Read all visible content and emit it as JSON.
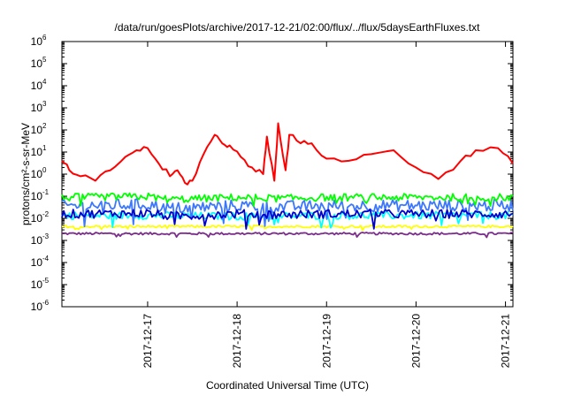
{
  "chart_data": {
    "type": "line",
    "title": "/data/run/goesPlots/archive/2017-12-21/02:00/flux/../flux/5daysEarthFluxes.txt",
    "xlabel": "Coordinated Universal Time (UTC)",
    "ylabel": "protons/cm²-s-sr-MeV",
    "yscale": "log",
    "ylim": [
      1e-06,
      1000000.0
    ],
    "xlim": [
      "2017-12-16T01:00",
      "2017-12-21T02:00"
    ],
    "grid": false,
    "legend": "none",
    "x_ticks": [
      "2017-12-17",
      "2017-12-18",
      "2017-12-19",
      "2017-12-20",
      "2017-12-21"
    ],
    "y_ticks": [
      {
        "base": "10",
        "exp": "-6",
        "value": 1e-06
      },
      {
        "base": "10",
        "exp": "-5",
        "value": 1e-05
      },
      {
        "base": "10",
        "exp": "-4",
        "value": 0.0001
      },
      {
        "base": "10",
        "exp": "-3",
        "value": 0.001
      },
      {
        "base": "10",
        "exp": "-2",
        "value": 0.01
      },
      {
        "base": "10",
        "exp": "-1",
        "value": 0.1
      },
      {
        "base": "10",
        "exp": "0",
        "value": 1
      },
      {
        "base": "10",
        "exp": "1",
        "value": 10
      },
      {
        "base": "10",
        "exp": "2",
        "value": 100
      },
      {
        "base": "10",
        "exp": "3",
        "value": 1000
      },
      {
        "base": "10",
        "exp": "4",
        "value": 10000
      },
      {
        "base": "10",
        "exp": "5",
        "value": 100000
      },
      {
        "base": "10",
        "exp": "6",
        "value": 1000000
      }
    ],
    "series": [
      {
        "color": "#ff0000",
        "x": [
          "2017-12-16T01:00",
          "2017-12-16T03:00",
          "2017-12-16T06:00",
          "2017-12-16T10:00",
          "2017-12-16T14:00",
          "2017-12-16T18:00",
          "2017-12-16T21:00",
          "2017-12-17T00:00",
          "2017-12-17T03:00",
          "2017-12-17T06:00",
          "2017-12-17T08:00",
          "2017-12-17T10:00",
          "2017-12-17T12:00",
          "2017-12-17T15:00",
          "2017-12-17T18:00",
          "2017-12-17T20:00",
          "2017-12-17T22:00",
          "2017-12-18T01:00",
          "2017-12-18T04:00",
          "2017-12-18T07:00",
          "2017-12-18T08:00",
          "2017-12-18T10:00",
          "2017-12-18T11:00",
          "2017-12-18T13:00",
          "2017-12-18T14:00",
          "2017-12-18T17:00",
          "2017-12-18T20:00",
          "2017-12-19T00:00",
          "2017-12-19T06:00",
          "2017-12-19T12:00",
          "2017-12-19T18:00",
          "2017-12-20T00:00",
          "2017-12-20T06:00",
          "2017-12-20T12:00",
          "2017-12-20T16:00",
          "2017-12-20T22:00",
          "2017-12-21T02:00"
        ],
        "values": [
          4,
          1.5,
          0.8,
          0.5,
          1.5,
          6,
          12,
          15,
          3,
          0.8,
          1.5,
          0.4,
          0.5,
          8,
          60,
          25,
          20,
          6,
          2,
          1,
          50,
          0.5,
          200,
          1.5,
          60,
          25,
          25,
          5,
          4,
          8,
          12,
          2,
          0.6,
          4,
          12,
          15,
          3
        ]
      },
      {
        "color": "#00ff00",
        "band": [
          0.13,
          0.06
        ],
        "x": [
          "2017-12-16T01:00",
          "2017-12-17T00:00",
          "2017-12-17T06:00",
          "2017-12-18T00:00",
          "2017-12-18T12:00",
          "2017-12-19T00:00",
          "2017-12-20T00:00",
          "2017-12-21T02:00"
        ],
        "values": [
          0.1,
          0.11,
          0.08,
          0.1,
          0.09,
          0.1,
          0.1,
          0.1
        ]
      },
      {
        "color": "#3c78ff",
        "band": [
          0.07,
          0.02
        ],
        "x": [
          "2017-12-16T01:00",
          "2017-12-17T00:00",
          "2017-12-17T06:00",
          "2017-12-18T00:00",
          "2017-12-18T12:00",
          "2017-12-19T00:00",
          "2017-12-20T00:00",
          "2017-12-21T02:00"
        ],
        "values": [
          0.04,
          0.045,
          0.03,
          0.04,
          0.035,
          0.04,
          0.04,
          0.04
        ]
      },
      {
        "color": "#00ffff",
        "band": [
          0.02,
          0.009
        ],
        "x": [
          "2017-12-16T01:00",
          "2017-12-17T00:00",
          "2017-12-18T00:00",
          "2017-12-19T00:00",
          "2017-12-20T00:00",
          "2017-12-21T02:00"
        ],
        "values": [
          0.013,
          0.013,
          0.012,
          0.013,
          0.013,
          0.013
        ]
      },
      {
        "color": "#0000cc",
        "band": [
          0.025,
          0.01
        ],
        "x": [
          "2017-12-16T01:00",
          "2017-12-17T00:00",
          "2017-12-17T06:00",
          "2017-12-18T00:00",
          "2017-12-18T12:00",
          "2017-12-19T00:00",
          "2017-12-20T00:00",
          "2017-12-21T02:00"
        ],
        "values": [
          0.015,
          0.016,
          0.012,
          0.015,
          0.014,
          0.015,
          0.015,
          0.015
        ]
      },
      {
        "color": "#ffff00",
        "band": [
          0.0048,
          0.0038
        ],
        "x": [
          "2017-12-16T01:00",
          "2017-12-17T00:00",
          "2017-12-18T00:00",
          "2017-12-19T00:00",
          "2017-12-20T00:00",
          "2017-12-21T02:00"
        ],
        "values": [
          0.0042,
          0.0042,
          0.0042,
          0.0042,
          0.0042,
          0.0042
        ]
      },
      {
        "color": "#7b2d8b",
        "band": [
          0.0023,
          0.0018
        ],
        "x": [
          "2017-12-16T01:00",
          "2017-12-17T00:00",
          "2017-12-18T00:00",
          "2017-12-19T00:00",
          "2017-12-20T00:00",
          "2017-12-21T02:00"
        ],
        "values": [
          0.002,
          0.002,
          0.002,
          0.002,
          0.002,
          0.002
        ]
      }
    ]
  }
}
